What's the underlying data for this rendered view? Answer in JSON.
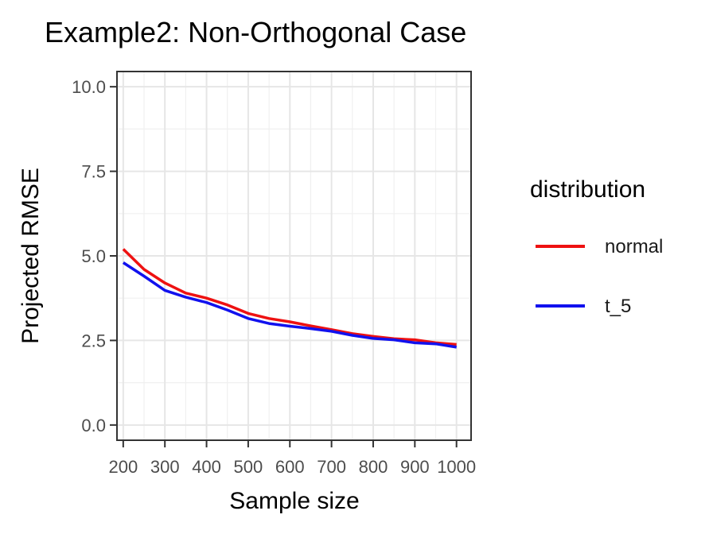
{
  "chart_data": {
    "type": "line",
    "title": "Example2: Non-Orthogonal Case",
    "xlabel": "Sample size",
    "ylabel": "Projected RMSE",
    "xlim": [
      185,
      1035
    ],
    "ylim": [
      -0.45,
      10.45
    ],
    "x_ticks": [
      200,
      300,
      400,
      500,
      600,
      700,
      800,
      900,
      1000
    ],
    "x_tick_labels": [
      "200",
      "300",
      "400",
      "500",
      "600",
      "700",
      "800",
      "900",
      "1000"
    ],
    "y_ticks": [
      0,
      2.5,
      5,
      7.5,
      10
    ],
    "y_tick_labels": [
      "0.0",
      "2.5",
      "5.0",
      "7.5",
      "10.0"
    ],
    "grid": true,
    "legend": {
      "title": "distribution",
      "placement": "right",
      "entries": [
        {
          "label": "normal",
          "color": "#ee1111"
        },
        {
          "label": "t_5",
          "color": "#1111ee"
        }
      ]
    },
    "x": [
      200,
      250,
      300,
      350,
      400,
      450,
      500,
      550,
      600,
      650,
      700,
      750,
      800,
      850,
      900,
      950,
      1000
    ],
    "series": [
      {
        "name": "normal",
        "color": "#ee1111",
        "values": [
          5.2,
          4.6,
          4.2,
          3.9,
          3.75,
          3.55,
          3.3,
          3.15,
          3.05,
          2.93,
          2.82,
          2.7,
          2.62,
          2.55,
          2.52,
          2.43,
          2.38
        ]
      },
      {
        "name": "t_5",
        "color": "#1111ee",
        "values": [
          4.8,
          4.4,
          3.98,
          3.78,
          3.62,
          3.4,
          3.15,
          3.0,
          2.92,
          2.85,
          2.77,
          2.65,
          2.56,
          2.52,
          2.43,
          2.4,
          2.3
        ]
      }
    ]
  }
}
